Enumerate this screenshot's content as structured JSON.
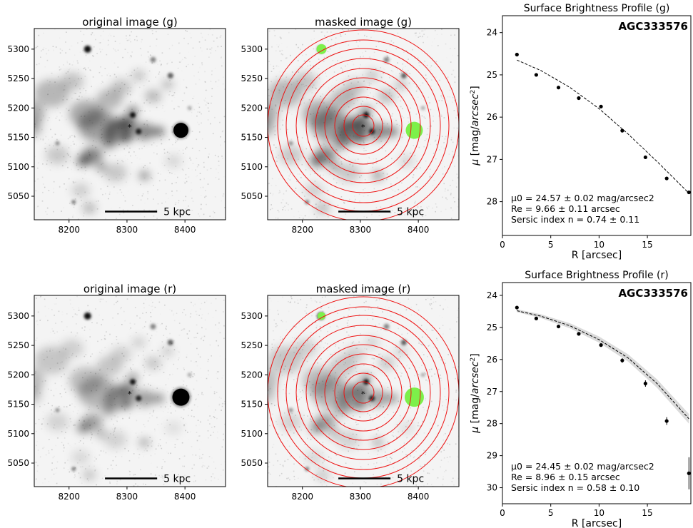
{
  "rows": [
    {
      "band": "g",
      "original_title": "original image (g)",
      "masked_title": "masked image (g)",
      "scale_label": "5 kpc",
      "yticks": [
        5050,
        5100,
        5150,
        5200,
        5250,
        5300
      ],
      "xticks": [
        8200,
        8300,
        8400
      ],
      "profile": {
        "title": "Surface Brightness Profile (g)",
        "galaxy": "AGC333576",
        "annotation": [
          "μ0 =  24.57 ±  0.02 mag/arcsec2",
          "Re =  9.66 ± 0.11 arcsec",
          "Sersic index n =  0.74 ±  0.11"
        ]
      }
    },
    {
      "band": "r",
      "original_title": "original image (r)",
      "masked_title": "masked image (r)",
      "scale_label": "5 kpc",
      "yticks": [
        5050,
        5100,
        5150,
        5200,
        5250,
        5300
      ],
      "xticks": [
        8200,
        8300,
        8400
      ],
      "profile": {
        "title": "Surface Brightness Profile (r)",
        "galaxy": "AGC333576",
        "annotation": [
          "μ0 =  24.45 ±  0.02 mag/arcsec2",
          "Re =  8.96 ± 0.15 arcsec",
          "Sersic index n =  0.58 ±  0.10"
        ]
      }
    }
  ],
  "chart_data": [
    {
      "type": "scatter",
      "title": "Surface Brightness Profile (g)",
      "xlabel": "R [arcsec]",
      "ylabel": "μ [mag/arcsec2]",
      "xlim": [
        0,
        19.5
      ],
      "ylim": [
        28.8,
        23.6
      ],
      "xticks": [
        0,
        5,
        10,
        15
      ],
      "yticks": [
        24,
        25,
        26,
        27,
        28
      ],
      "points": {
        "x": [
          1.5,
          3.5,
          5.8,
          7.9,
          10.2,
          12.4,
          14.8,
          17.0,
          19.3
        ],
        "y": [
          24.52,
          25.0,
          25.3,
          25.55,
          25.75,
          26.32,
          26.95,
          27.45,
          27.78
        ]
      },
      "fit": {
        "x": [
          1.5,
          4,
          7,
          10,
          13,
          16,
          19.3
        ],
        "y": [
          24.65,
          24.9,
          25.3,
          25.8,
          26.4,
          27.05,
          27.8
        ]
      }
    },
    {
      "type": "scatter",
      "title": "Surface Brightness Profile (r)",
      "xlabel": "R [arcsec]",
      "ylabel": "μ [mag/arcsec2]",
      "xlim": [
        0,
        19.5
      ],
      "ylim": [
        30.5,
        23.6
      ],
      "xticks": [
        0,
        5,
        10,
        15
      ],
      "yticks": [
        24,
        25,
        26,
        27,
        28,
        29,
        30
      ],
      "points": {
        "x": [
          1.5,
          3.5,
          5.8,
          7.9,
          10.2,
          12.4,
          14.8,
          17.0,
          19.3
        ],
        "y": [
          24.38,
          24.72,
          24.97,
          25.2,
          25.55,
          26.03,
          26.75,
          27.92,
          29.55
        ],
        "yerr": [
          0.03,
          0.03,
          0.03,
          0.04,
          0.05,
          0.07,
          0.1,
          0.12,
          0.5
        ]
      },
      "fit": {
        "x": [
          1.5,
          4,
          7,
          10,
          13,
          16,
          19.3
        ],
        "y": [
          24.48,
          24.65,
          24.95,
          25.38,
          25.95,
          26.75,
          27.85
        ]
      }
    }
  ]
}
